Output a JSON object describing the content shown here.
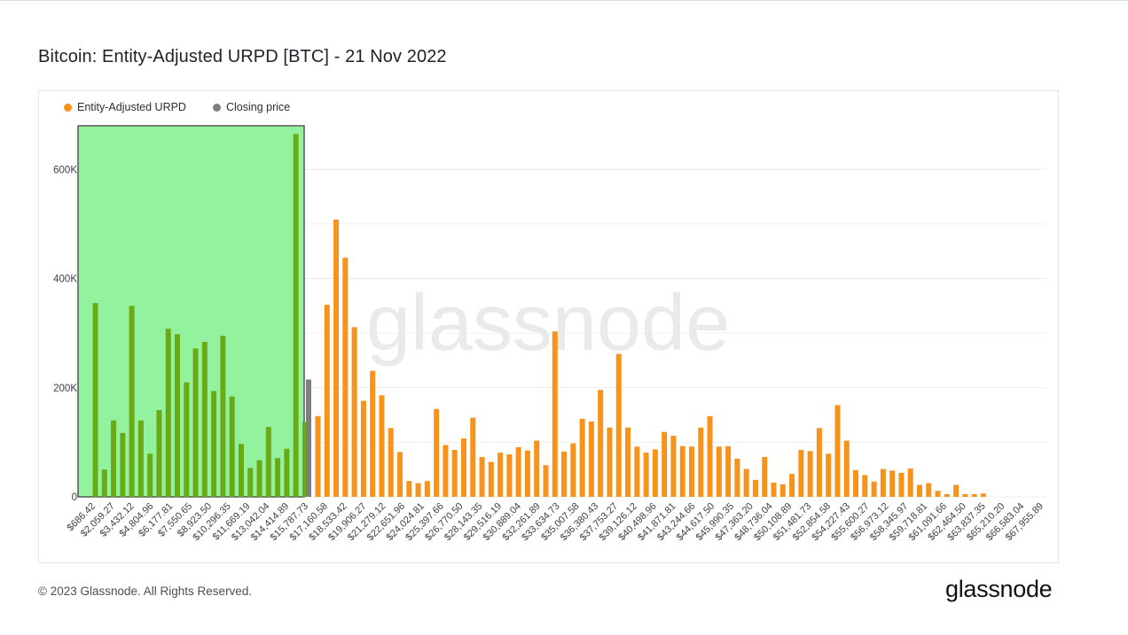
{
  "page": {
    "title": "Bitcoin: Entity-Adjusted URPD [BTC] - 21 Nov 2022",
    "copyright": "© 2023 Glassnode. All Rights Reserved.",
    "brand": "glassnode",
    "watermark": "glassnode"
  },
  "legend": [
    {
      "label": "Entity-Adjusted URPD",
      "color": "#f7931a"
    },
    {
      "label": "Closing price",
      "color": "#7f7f7f"
    }
  ],
  "colors": {
    "bar": "#f7931a",
    "bar_in_range": "#6aaa16",
    "range_fill": "#93f29e",
    "range_stroke": "#4d4d4d",
    "closing_price": "#7f7f7f",
    "grid": "#ececec",
    "axis_text": "#3c4248"
  },
  "chart_data": {
    "type": "bar",
    "title": "Bitcoin: Entity-Adjusted URPD [BTC] - 21 Nov 2022",
    "xlabel": "",
    "ylabel": "",
    "ylim": [
      0,
      680000
    ],
    "yticks": [
      0,
      200000,
      400000,
      600000
    ],
    "ytick_labels": [
      "0",
      "200K",
      "400K",
      "600K"
    ],
    "grid": true,
    "legend_position": "top-left",
    "highlighted_range_bar_count": 24,
    "closing_price_bar_value": 215000,
    "values": [
      355000,
      50000,
      140000,
      117000,
      350000,
      140000,
      79000,
      159000,
      308000,
      298000,
      210000,
      272000,
      284000,
      194000,
      295000,
      184000,
      97000,
      53000,
      67000,
      128000,
      71000,
      88000,
      665000,
      137000,
      148000,
      352000,
      508000,
      438000,
      311000,
      176000,
      231000,
      186000,
      126000,
      82000,
      29000,
      25000,
      29000,
      161000,
      95000,
      86000,
      107000,
      145000,
      73000,
      64000,
      81000,
      78000,
      91000,
      85000,
      103000,
      58000,
      303000,
      83000,
      98000,
      143000,
      138000,
      196000,
      127000,
      262000,
      127000,
      92000,
      81000,
      87000,
      119000,
      112000,
      93000,
      92000,
      127000,
      148000,
      92000,
      93000,
      70000,
      51000,
      31000,
      73000,
      26000,
      23000,
      42000,
      86000,
      84000,
      126000,
      79000,
      168000,
      103000,
      49000,
      40000,
      28000,
      51000,
      48000,
      44000,
      52000,
      22000,
      25000,
      11000,
      5000,
      22000,
      5000,
      5000,
      6000
    ],
    "tick_labels": [
      "$686.42",
      "$2,059.27",
      "$3,432.12",
      "$4,804.96",
      "$6,177.81",
      "$7,550.65",
      "$8,923.50",
      "$10,296.35",
      "$11,669.19",
      "$13,042.04",
      "$14,414.89",
      "$15,787.73",
      "$17,160.58",
      "$18,533.42",
      "$19,906.27",
      "$21,279.12",
      "$22,651.96",
      "$24,024.81",
      "$25,397.66",
      "$26,770.50",
      "$28,143.35",
      "$29,516.19",
      "$30,889.04",
      "$32,261.89",
      "$33,634.73",
      "$35,007.58",
      "$36,380.43",
      "$37,753.27",
      "$39,126.12",
      "$40,498.96",
      "$41,871.81",
      "$43,244.66",
      "$44,617.50",
      "$45,990.35",
      "$47,363.20",
      "$48,736.04",
      "$50,108.89",
      "$51,481.73",
      "$52,854.58",
      "$54,227.43",
      "$55,600.27",
      "$56,973.12",
      "$58,345.97",
      "$59,718.81",
      "$61,091.66",
      "$62,464.50",
      "$63,837.35",
      "$65,210.20",
      "$66,583.04",
      "$67,955.89"
    ]
  }
}
